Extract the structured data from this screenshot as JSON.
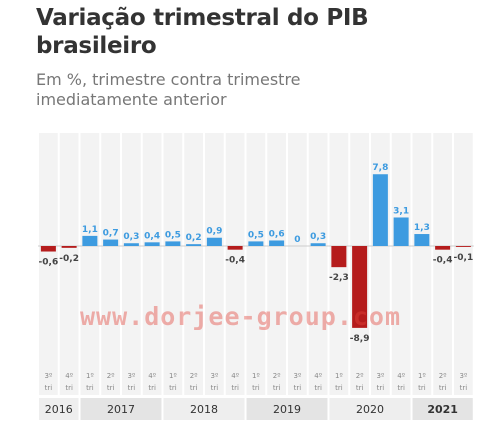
{
  "title_line1": "Variação trimestral do PIB",
  "title_line2": "brasileiro",
  "subtitle_line1": "Em %, trimestre contra trimestre",
  "subtitle_line2": "imediatamente anterior",
  "watermark": "www.dorjee-group.com",
  "colors": {
    "positive": "#3d9be0",
    "negative": "#b51c1c",
    "column_bg": "#f3f3f3",
    "positive_label": "#3d9be0",
    "negative_label": "#444444"
  },
  "chart_data": {
    "type": "bar",
    "title": "Variação trimestral do PIB brasileiro",
    "subtitle": "Em %, trimestre contra trimestre imediatamente anterior",
    "categories": [
      {
        "quarter": "3º",
        "suffix": "tri",
        "year": "2016"
      },
      {
        "quarter": "4º",
        "suffix": "tri",
        "year": "2016"
      },
      {
        "quarter": "1º",
        "suffix": "tri",
        "year": "2017"
      },
      {
        "quarter": "2º",
        "suffix": "tri",
        "year": "2017"
      },
      {
        "quarter": "3º",
        "suffix": "tri",
        "year": "2017"
      },
      {
        "quarter": "4º",
        "suffix": "tri",
        "year": "2017"
      },
      {
        "quarter": "1º",
        "suffix": "tri",
        "year": "2018"
      },
      {
        "quarter": "2º",
        "suffix": "tri",
        "year": "2018"
      },
      {
        "quarter": "3º",
        "suffix": "tri",
        "year": "2018"
      },
      {
        "quarter": "4º",
        "suffix": "tri",
        "year": "2018"
      },
      {
        "quarter": "1º",
        "suffix": "tri",
        "year": "2019"
      },
      {
        "quarter": "2º",
        "suffix": "tri",
        "year": "2019"
      },
      {
        "quarter": "3º",
        "suffix": "tri",
        "year": "2019"
      },
      {
        "quarter": "4º",
        "suffix": "tri",
        "year": "2019"
      },
      {
        "quarter": "1º",
        "suffix": "tri",
        "year": "2020"
      },
      {
        "quarter": "2º",
        "suffix": "tri",
        "year": "2020"
      },
      {
        "quarter": "3º",
        "suffix": "tri",
        "year": "2020"
      },
      {
        "quarter": "4º",
        "suffix": "tri",
        "year": "2020"
      },
      {
        "quarter": "1º",
        "suffix": "tri",
        "year": "2021"
      },
      {
        "quarter": "2º",
        "suffix": "tri",
        "year": "2021"
      },
      {
        "quarter": "3º",
        "suffix": "tri",
        "year": "2021"
      }
    ],
    "values": [
      -0.6,
      -0.2,
      1.1,
      0.7,
      0.3,
      0.4,
      0.5,
      0.2,
      0.9,
      -0.4,
      0.5,
      0.6,
      0,
      0.3,
      -2.3,
      -8.9,
      7.8,
      3.1,
      1.3,
      -0.4,
      -0.1
    ],
    "value_labels": [
      "-0,6",
      "-0,2",
      "1,1",
      "0,7",
      "0,3",
      "0,4",
      "0,5",
      "0,2",
      "0,9",
      "-0,4",
      "0,5",
      "0,6",
      "0",
      "0,3",
      "-2,3",
      "-8,9",
      "7,8",
      "3,1",
      "1,3",
      "-0,4",
      "-0,1"
    ],
    "years": [
      {
        "label": "2016",
        "count": 2,
        "bold": false
      },
      {
        "label": "2017",
        "count": 4,
        "bold": false
      },
      {
        "label": "2018",
        "count": 4,
        "bold": false
      },
      {
        "label": "2019",
        "count": 4,
        "bold": false
      },
      {
        "label": "2020",
        "count": 4,
        "bold": false
      },
      {
        "label": "2021",
        "count": 3,
        "bold": true
      }
    ],
    "ylim": [
      -9.5,
      8.5
    ],
    "grid": false,
    "legend": "none"
  }
}
